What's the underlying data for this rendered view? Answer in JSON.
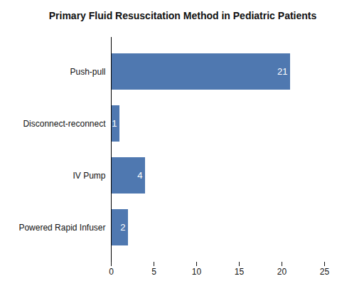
{
  "chart_data": {
    "type": "bar",
    "title": "Primary Fluid Resuscitation Method in Pediatric Patients",
    "orientation": "horizontal",
    "categories": [
      "Push-pull",
      "Disconnect-reconnect",
      "IV Pump",
      "Powered Rapid Infuser"
    ],
    "values": [
      21,
      1,
      4,
      2
    ],
    "color": "#4f78b0",
    "xlim": [
      0,
      25
    ],
    "xticks": [
      0,
      5,
      10,
      15,
      20,
      25
    ],
    "grid": false,
    "data_labels": true
  }
}
